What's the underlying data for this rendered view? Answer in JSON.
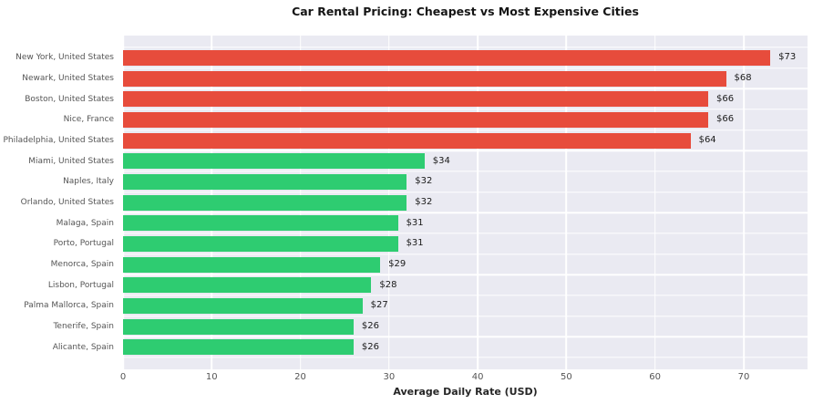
{
  "chart_data": {
    "type": "bar",
    "orientation": "horizontal",
    "title": "Car Rental Pricing: Cheapest vs Most Expensive Cities",
    "xlabel": "Average Daily Rate (USD)",
    "ylabel": "",
    "categories": [
      "New York, United States",
      "Newark, United States",
      "Boston, United States",
      "Nice, France",
      "Philadelphia, United States",
      "Miami, United States",
      "Naples, Italy",
      "Orlando, United States",
      "Malaga, Spain",
      "Porto, Portugal",
      "Menorca, Spain",
      "Lisbon, Portugal",
      "Palma Mallorca, Spain",
      "Tenerife, Spain",
      "Alicante, Spain"
    ],
    "values": [
      73,
      68,
      66,
      66,
      64,
      34,
      32,
      32,
      31,
      31,
      29,
      28,
      27,
      26,
      26
    ],
    "value_labels": [
      "$73",
      "$68",
      "$66",
      "$66",
      "$64",
      "$34",
      "$32",
      "$32",
      "$31",
      "$31",
      "$29",
      "$28",
      "$27",
      "$26",
      "$26"
    ],
    "groups": [
      "expensive",
      "expensive",
      "expensive",
      "expensive",
      "expensive",
      "cheap",
      "cheap",
      "cheap",
      "cheap",
      "cheap",
      "cheap",
      "cheap",
      "cheap",
      "cheap",
      "cheap"
    ],
    "group_colors": {
      "expensive": "#e74c3c",
      "cheap": "#2ecc71"
    },
    "x_ticks": [
      0,
      10,
      20,
      30,
      40,
      50,
      60,
      70
    ],
    "xlim": [
      0,
      77.2
    ],
    "grid": true,
    "legend": false,
    "plot_background": "#eaeaf2",
    "grid_color": "#ffffff"
  }
}
